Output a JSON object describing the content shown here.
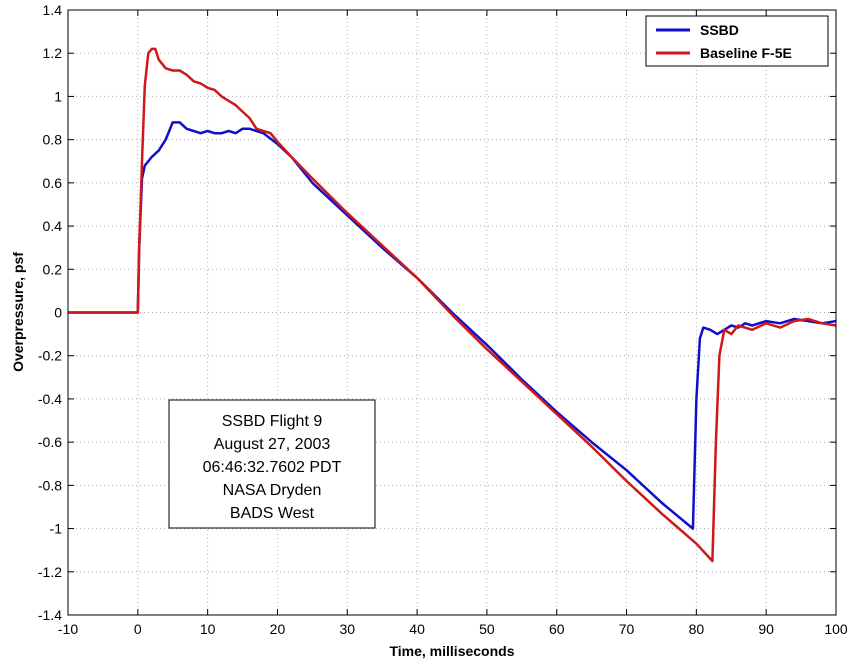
{
  "chart_data": {
    "type": "line",
    "xlabel": "Time, milliseconds",
    "ylabel": "Overpressure, psf",
    "xlim": [
      -10,
      100
    ],
    "ylim": [
      -1.4,
      1.4
    ],
    "xticks": [
      -10,
      0,
      10,
      20,
      30,
      40,
      50,
      60,
      70,
      80,
      90,
      100
    ],
    "yticks": [
      1.4,
      1.2,
      1,
      0.8,
      0.6,
      0.4,
      0.2,
      0,
      -0.2,
      -0.4,
      -0.6,
      -0.8,
      -1,
      -1.2,
      -1.4
    ],
    "grid": true,
    "legend_position": "top-right",
    "series": [
      {
        "name": "SSBD",
        "color": "#1010c8",
        "x": [
          -10,
          0,
          0.2,
          0.6,
          1,
          2,
          3,
          4,
          5,
          6,
          7,
          8,
          9,
          10,
          11,
          12,
          13,
          14,
          15,
          16,
          17,
          18,
          20,
          22,
          25,
          30,
          35,
          40,
          45,
          50,
          55,
          60,
          65,
          70,
          75,
          79.5,
          80.0,
          80.5,
          81,
          82,
          83,
          84,
          85,
          86,
          87,
          88,
          90,
          92,
          94,
          96,
          98,
          100
        ],
        "y": [
          0,
          0,
          0.3,
          0.62,
          0.68,
          0.72,
          0.75,
          0.8,
          0.88,
          0.88,
          0.85,
          0.84,
          0.83,
          0.84,
          0.83,
          0.83,
          0.84,
          0.83,
          0.85,
          0.85,
          0.84,
          0.83,
          0.78,
          0.72,
          0.6,
          0.45,
          0.3,
          0.16,
          0.0,
          -0.15,
          -0.31,
          -0.46,
          -0.6,
          -0.73,
          -0.88,
          -1.0,
          -0.4,
          -0.12,
          -0.07,
          -0.08,
          -0.1,
          -0.08,
          -0.06,
          -0.07,
          -0.05,
          -0.06,
          -0.04,
          -0.05,
          -0.03,
          -0.04,
          -0.05,
          -0.04
        ]
      },
      {
        "name": "Baseline F-5E",
        "color": "#d01818",
        "x": [
          -10,
          0,
          0.2,
          0.6,
          1,
          1.5,
          2,
          2.5,
          3,
          4,
          5,
          6,
          7,
          8,
          9,
          10,
          11,
          12,
          13,
          14,
          15,
          16,
          17,
          18,
          19,
          20,
          22,
          25,
          30,
          35,
          40,
          45,
          50,
          55,
          60,
          65,
          70,
          75,
          80,
          82.3,
          82.8,
          83.3,
          84,
          85,
          86,
          88,
          90,
          92,
          94,
          96,
          98,
          100
        ],
        "y": [
          0,
          0,
          0.3,
          0.7,
          1.05,
          1.2,
          1.22,
          1.22,
          1.17,
          1.13,
          1.12,
          1.12,
          1.1,
          1.07,
          1.06,
          1.04,
          1.03,
          1.0,
          0.98,
          0.96,
          0.93,
          0.9,
          0.85,
          0.84,
          0.83,
          0.79,
          0.72,
          0.62,
          0.46,
          0.31,
          0.16,
          -0.01,
          -0.17,
          -0.32,
          -0.47,
          -0.62,
          -0.78,
          -0.93,
          -1.07,
          -1.15,
          -0.6,
          -0.2,
          -0.08,
          -0.1,
          -0.06,
          -0.08,
          -0.05,
          -0.07,
          -0.04,
          -0.03,
          -0.05,
          -0.06
        ]
      }
    ],
    "annotation": [
      "SSBD Flight 9",
      "August 27, 2003",
      "06:46:32.7602 PDT",
      "NASA Dryden",
      "BADS West"
    ]
  }
}
